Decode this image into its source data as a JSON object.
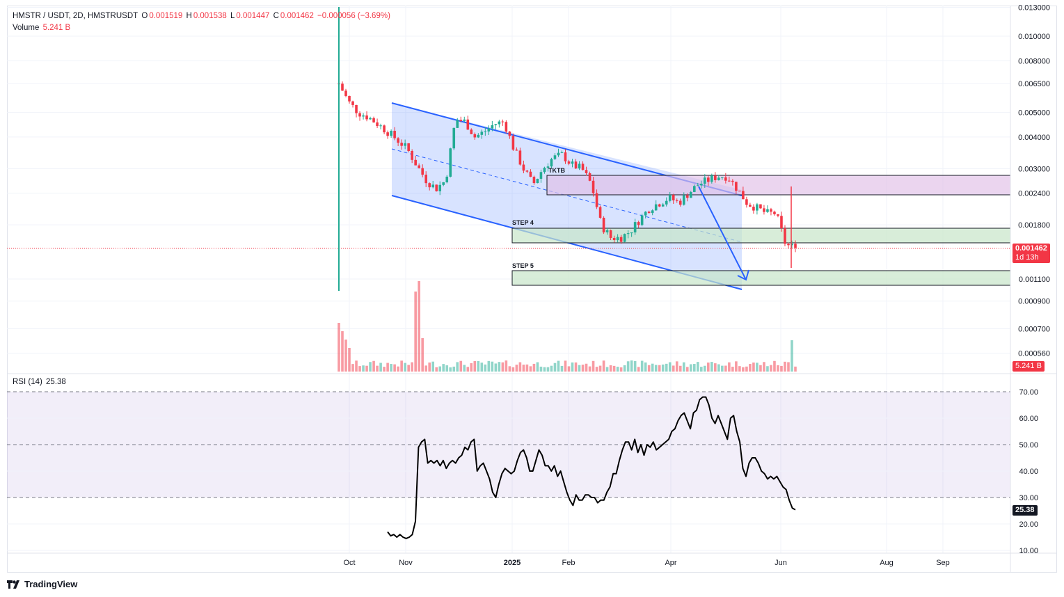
{
  "header": {
    "symbol": "HMSTR / USDT, 2D, HMSTRUSDT",
    "o_label": "O",
    "o_value": "0.001519",
    "h_label": "H",
    "h_value": "0.001538",
    "l_label": "L",
    "l_value": "0.001447",
    "c_label": "C",
    "c_value": "0.001462",
    "change": "−0.000056 (−3.69%)",
    "volume_label": "Volume",
    "volume_value": "5.241 B"
  },
  "rsi_header": {
    "label": "RSI (14)",
    "value": "25.38"
  },
  "badges": {
    "price": "0.001462",
    "countdown": "1d 13h",
    "volume": "5.241 B",
    "rsi": "25.38"
  },
  "annotations": {
    "tktb": "TKTB",
    "step4": "STEP 4",
    "step5": "STEP 5"
  },
  "branding": {
    "logo_text": "TradingView"
  },
  "colors": {
    "up": "#22ab94",
    "down": "#f23645",
    "channel": "#2962ff",
    "rsi_line": "#000000"
  },
  "chart_data": [
    {
      "type": "candlestick",
      "scale": "log",
      "x_ticks": [
        "Oct",
        "Nov",
        "2025",
        "Feb",
        "Apr",
        "Jun",
        "Aug",
        "Sep"
      ],
      "y_ticks": [
        "0.013000",
        "0.010000",
        "0.008000",
        "0.006500",
        "0.005000",
        "0.004000",
        "0.003000",
        "0.002400",
        "0.001800",
        "0.001100",
        "0.000900",
        "0.000700",
        "0.000560"
      ],
      "last_price": 0.001462,
      "close_series_approx": [
        0.0065,
        0.0055,
        0.005,
        0.0048,
        0.0045,
        0.0042,
        0.0039,
        0.0036,
        0.0031,
        0.0027,
        0.0025,
        0.0027,
        0.0047,
        0.0046,
        0.004,
        0.0042,
        0.0045,
        0.0046,
        0.0036,
        0.003,
        0.0026,
        0.003,
        0.0033,
        0.0034,
        0.0031,
        0.003,
        0.0026,
        0.0018,
        0.0016,
        0.0016,
        0.0017,
        0.0019,
        0.0021,
        0.0022,
        0.0023,
        0.0022,
        0.0024,
        0.0026,
        0.0027,
        0.0028,
        0.0028,
        0.0025,
        0.0022,
        0.0021,
        0.002,
        0.002,
        0.0015,
        0.001462
      ],
      "zones": [
        {
          "label": "TKTB",
          "top": 0.00275,
          "bottom": 0.0024,
          "color": "#e1bee7"
        },
        {
          "label": "STEP 4",
          "top": 0.00175,
          "bottom": 0.00153,
          "color": "#c8e6c9"
        },
        {
          "label": "STEP 5",
          "top": 0.00114,
          "bottom": 0.00104,
          "color": "#c8e6c9"
        }
      ]
    },
    {
      "type": "bar",
      "name": "Volume",
      "last_value": "5.241 B"
    },
    {
      "type": "line",
      "name": "RSI (14)",
      "y_ticks": [
        "70.00",
        "60.00",
        "50.00",
        "40.00",
        "30.00",
        "20.00",
        "10.00"
      ],
      "ylim": [
        10,
        70
      ],
      "bands": [
        30,
        50,
        70
      ],
      "values": [
        17,
        15.5,
        16,
        15,
        16,
        15,
        14.5,
        15,
        16,
        21,
        49,
        51,
        52,
        43,
        44,
        43,
        44,
        42,
        44,
        41,
        43,
        44,
        43,
        45,
        46,
        49,
        48,
        51,
        52,
        40,
        42,
        43,
        40,
        37,
        32,
        30,
        35,
        39,
        41,
        40,
        39,
        40,
        44,
        47,
        48,
        45,
        40,
        40,
        44,
        48,
        46,
        42,
        42,
        40,
        42,
        38,
        40,
        36,
        32,
        29,
        27,
        31,
        29,
        29,
        31,
        31,
        30,
        30,
        28,
        29,
        29,
        32,
        34,
        39,
        39,
        44,
        48,
        51,
        51,
        48,
        52,
        47,
        50,
        46,
        50,
        49,
        51,
        48,
        49,
        50,
        51,
        52,
        55,
        56,
        59,
        61,
        62,
        59,
        56,
        62,
        63,
        67,
        68,
        68,
        65,
        60,
        58,
        61,
        58,
        55,
        52,
        60,
        61,
        55,
        51,
        41,
        38,
        43,
        45,
        45,
        43,
        40,
        39,
        37,
        38,
        37,
        38,
        36,
        34,
        33,
        29,
        26,
        25.38
      ]
    }
  ]
}
